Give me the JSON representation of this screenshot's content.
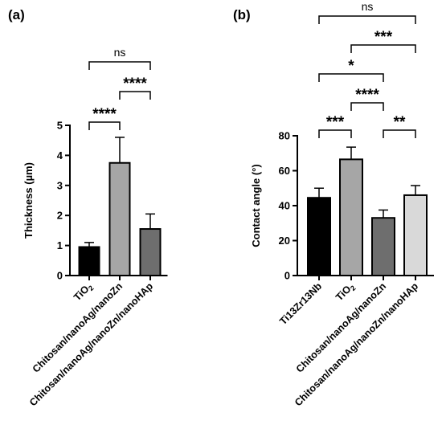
{
  "chart_data": [
    {
      "type": "bar",
      "panel_label": "(a)",
      "title": "",
      "xlabel": "",
      "ylabel": "Thickness (µm)",
      "ylim": [
        0,
        5
      ],
      "yticks": [
        "0",
        "1",
        "2",
        "3",
        "4",
        "5"
      ],
      "categories": [
        "TiO2",
        "Chitosan/nanoAg/nanoZn",
        "Chitosan/nanoAg/nanoZn/nanoHAp"
      ],
      "values": [
        0.95,
        3.75,
        1.55
      ],
      "errors": [
        0.15,
        0.85,
        0.5
      ],
      "bar_colors": [
        "#000000",
        "#a6a6a6",
        "#6e6e6e"
      ],
      "significance": [
        {
          "from": 0,
          "to": 1,
          "label": "****"
        },
        {
          "from": 1,
          "to": 2,
          "label": "****"
        },
        {
          "from": 0,
          "to": 2,
          "label": "ns"
        }
      ]
    },
    {
      "type": "bar",
      "panel_label": "(b)",
      "title": "",
      "xlabel": "",
      "ylabel": "Contact angle (°)",
      "ylim": [
        0,
        80
      ],
      "yticks": [
        "0",
        "20",
        "40",
        "60",
        "80"
      ],
      "categories": [
        "Ti13Zr13Nb",
        "TiO2",
        "Chitosan/nanoAg/nanoZn",
        "Chitosan/nanoAg/nanoZn/nanoHAp"
      ],
      "values": [
        44.5,
        66.5,
        33.0,
        46.0
      ],
      "errors": [
        5.5,
        7.0,
        4.5,
        5.5
      ],
      "bar_colors": [
        "#000000",
        "#a6a6a6",
        "#6e6e6e",
        "#d9d9d9"
      ],
      "significance": [
        {
          "from": 0,
          "to": 1,
          "label": "***"
        },
        {
          "from": 2,
          "to": 3,
          "label": "**"
        },
        {
          "from": 1,
          "to": 2,
          "label": "****"
        },
        {
          "from": 0,
          "to": 2,
          "label": "*"
        },
        {
          "from": 1,
          "to": 3,
          "label": "***"
        },
        {
          "from": 0,
          "to": 3,
          "label": "ns"
        }
      ]
    }
  ]
}
